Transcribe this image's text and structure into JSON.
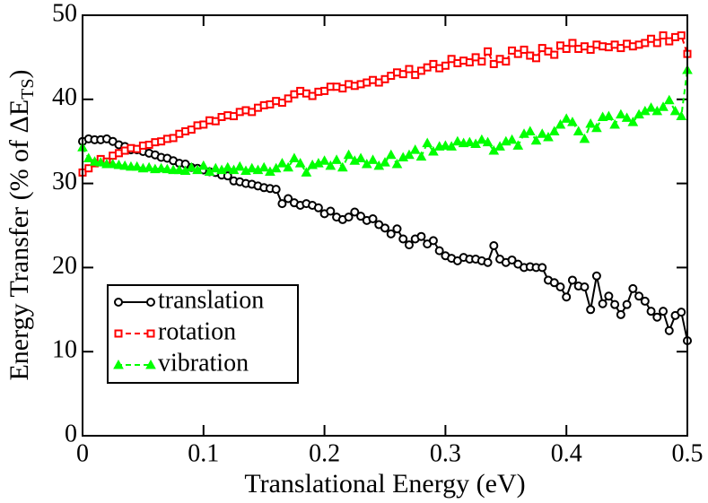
{
  "chart_data": {
    "type": "line",
    "xlabel": "Translational Energy (eV)",
    "ylabel": [
      "Energy Transfer (% of ΔE",
      "TS",
      ")"
    ],
    "xlim": [
      0,
      0.5
    ],
    "ylim": [
      0,
      50
    ],
    "xticks": [
      0,
      0.1,
      0.2,
      0.3,
      0.4,
      0.5
    ],
    "yticks": [
      0,
      10,
      20,
      30,
      40,
      50
    ],
    "legend": "lower left",
    "x": [
      0,
      0.005,
      0.01,
      0.015,
      0.02,
      0.025,
      0.03,
      0.035,
      0.04,
      0.045,
      0.05,
      0.055,
      0.06,
      0.065,
      0.07,
      0.075,
      0.08,
      0.085,
      0.09,
      0.095,
      0.1,
      0.105,
      0.11,
      0.115,
      0.12,
      0.125,
      0.13,
      0.135,
      0.14,
      0.145,
      0.15,
      0.155,
      0.16,
      0.165,
      0.17,
      0.175,
      0.18,
      0.185,
      0.19,
      0.195,
      0.2,
      0.205,
      0.21,
      0.215,
      0.22,
      0.225,
      0.23,
      0.235,
      0.24,
      0.245,
      0.25,
      0.255,
      0.26,
      0.265,
      0.27,
      0.275,
      0.28,
      0.285,
      0.29,
      0.295,
      0.3,
      0.305,
      0.31,
      0.315,
      0.32,
      0.325,
      0.33,
      0.335,
      0.34,
      0.345,
      0.35,
      0.355,
      0.36,
      0.365,
      0.37,
      0.375,
      0.38,
      0.385,
      0.39,
      0.395,
      0.4,
      0.405,
      0.41,
      0.415,
      0.42,
      0.425,
      0.43,
      0.435,
      0.44,
      0.445,
      0.45,
      0.455,
      0.46,
      0.465,
      0.47,
      0.475,
      0.48,
      0.485,
      0.49,
      0.495,
      0.5
    ],
    "series": [
      {
        "name": "translation",
        "color": "#000000",
        "marker": "circle",
        "dash": false,
        "values": [
          35.0,
          35.3,
          35.2,
          35.2,
          35.3,
          35.0,
          34.6,
          34.4,
          34.0,
          34.0,
          33.8,
          33.6,
          33.4,
          33.1,
          33.0,
          32.7,
          32.4,
          32.3,
          31.9,
          31.8,
          31.6,
          31.4,
          31.3,
          31.0,
          30.9,
          30.3,
          30.2,
          30.0,
          29.9,
          29.7,
          29.5,
          29.4,
          29.3,
          27.6,
          28.2,
          27.7,
          27.4,
          27.6,
          27.4,
          27.1,
          26.4,
          26.7,
          26.0,
          25.7,
          26.0,
          26.6,
          26.1,
          25.6,
          25.8,
          25.1,
          24.7,
          24.0,
          24.6,
          23.4,
          22.7,
          23.4,
          23.7,
          22.8,
          23.2,
          22.0,
          21.4,
          21.1,
          20.8,
          21.2,
          21.0,
          21.0,
          20.8,
          20.6,
          22.6,
          21.0,
          20.6,
          20.9,
          20.4,
          20.0,
          20.1,
          20.0,
          20.0,
          18.5,
          18.2,
          17.7,
          16.5,
          18.5,
          17.8,
          17.7,
          15.0,
          19.0,
          15.7,
          16.6,
          15.6,
          14.4,
          15.6,
          17.5,
          16.6,
          16.0,
          14.8,
          14.1,
          14.8,
          12.5,
          14.3,
          14.7,
          11.3
        ]
      },
      {
        "name": "rotation",
        "color": "#ff0000",
        "marker": "square",
        "dash": true,
        "values": [
          31.3,
          31.8,
          32.4,
          32.9,
          32.6,
          33.3,
          33.6,
          33.9,
          34.2,
          34.1,
          34.5,
          34.6,
          34.9,
          35.0,
          35.3,
          35.4,
          35.9,
          36.2,
          36.4,
          36.9,
          37.0,
          37.5,
          37.4,
          37.9,
          38.1,
          38.0,
          38.5,
          38.7,
          38.5,
          39.0,
          39.3,
          39.4,
          39.8,
          39.6,
          40.1,
          40.6,
          41.0,
          40.7,
          40.4,
          40.9,
          41.0,
          41.5,
          41.5,
          41.3,
          41.8,
          41.6,
          41.8,
          42.0,
          42.3,
          42.0,
          42.4,
          42.8,
          43.2,
          43.0,
          43.6,
          42.9,
          43.4,
          43.8,
          44.2,
          43.7,
          44.0,
          44.8,
          44.3,
          44.6,
          44.4,
          45.0,
          44.5,
          45.7,
          44.2,
          44.8,
          44.5,
          45.8,
          45.4,
          45.9,
          45.2,
          44.9,
          46.1,
          45.7,
          45.3,
          46.4,
          46.0,
          46.7,
          46.0,
          46.3,
          45.9,
          46.5,
          46.3,
          46.2,
          46.5,
          46.1,
          46.6,
          46.3,
          46.5,
          46.7,
          47.2,
          46.7,
          47.6,
          46.9,
          47.4,
          47.6,
          45.4
        ]
      },
      {
        "name": "vibration",
        "color": "#00ff00",
        "marker": "triangle",
        "dash": true,
        "values": [
          34.3,
          33.0,
          32.6,
          32.5,
          32.3,
          32.3,
          32.2,
          32.1,
          32.0,
          32.0,
          31.8,
          31.9,
          31.7,
          31.8,
          31.7,
          31.6,
          31.6,
          31.5,
          31.9,
          31.6,
          32.1,
          31.4,
          31.8,
          31.6,
          31.9,
          31.6,
          32.0,
          31.5,
          31.8,
          31.6,
          31.9,
          31.4,
          31.8,
          32.4,
          31.9,
          33.0,
          32.4,
          31.3,
          32.2,
          32.4,
          32.7,
          32.1,
          32.8,
          31.9,
          33.4,
          32.7,
          33.0,
          32.3,
          32.8,
          32.1,
          32.5,
          33.4,
          32.3,
          33.1,
          33.4,
          34.0,
          33.2,
          34.8,
          33.8,
          34.4,
          34.5,
          34.4,
          35.0,
          34.8,
          34.9,
          34.7,
          35.2,
          34.9,
          33.9,
          34.4,
          35.0,
          35.2,
          34.5,
          35.9,
          36.2,
          35.1,
          35.9,
          35.5,
          36.2,
          37.0,
          37.7,
          37.3,
          36.2,
          35.3,
          37.1,
          36.6,
          37.9,
          38.0,
          37.0,
          38.2,
          37.8,
          37.3,
          38.2,
          38.6,
          39.0,
          38.6,
          39.1,
          39.9,
          38.6,
          38.0,
          43.5
        ]
      }
    ]
  }
}
